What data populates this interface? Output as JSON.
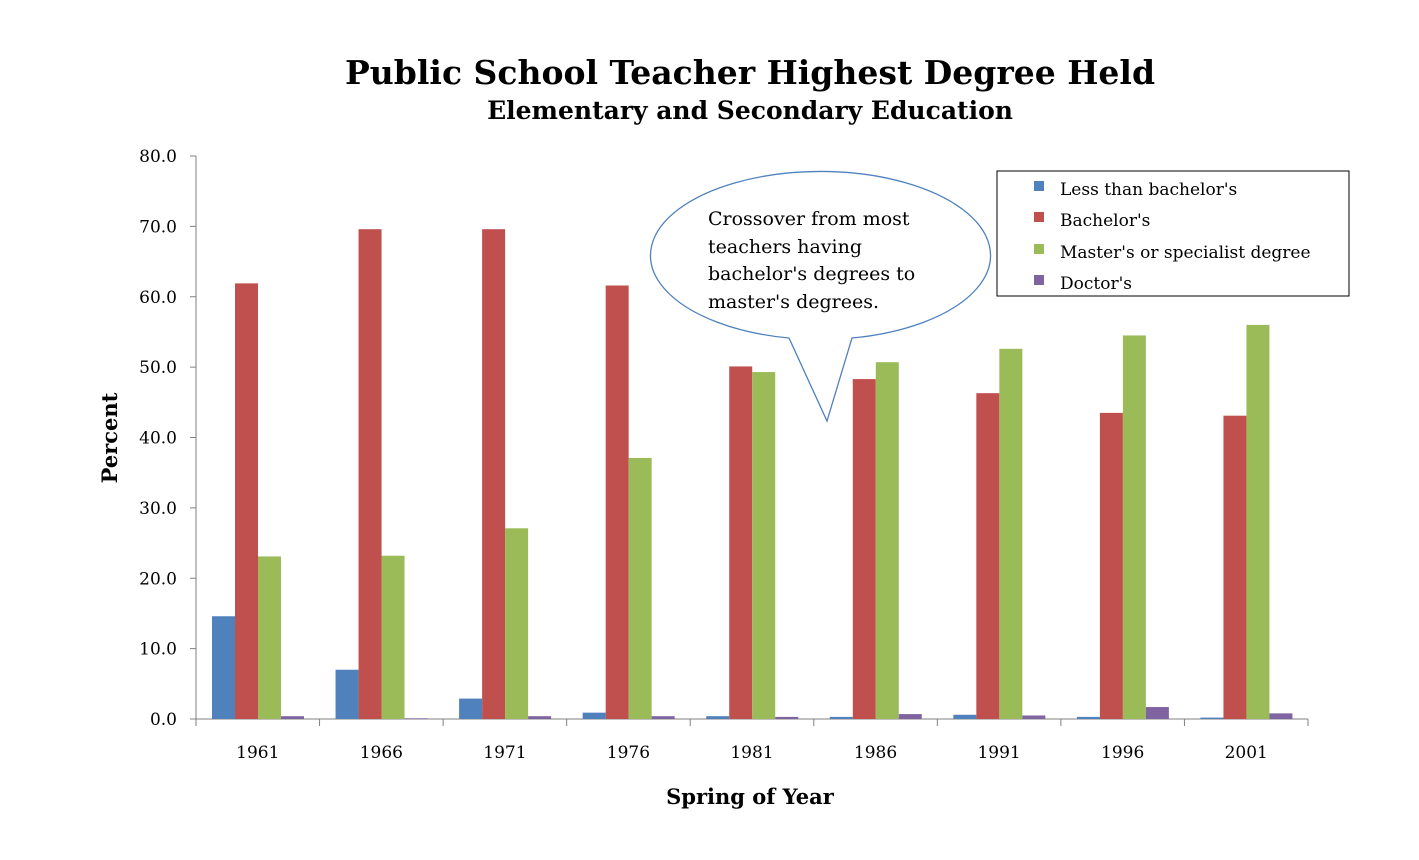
{
  "chart_data": {
    "type": "bar",
    "title": "Public School Teacher Highest Degree Held",
    "subtitle": "Elementary and Secondary Education",
    "xlabel": "Spring of Year",
    "ylabel": "Percent",
    "categories": [
      "1961",
      "1966",
      "1971",
      "1976",
      "1981",
      "1986",
      "1991",
      "1996",
      "2001"
    ],
    "ylim": [
      0,
      80
    ],
    "yticks": [
      "0.0",
      "10.0",
      "20.0",
      "30.0",
      "40.0",
      "50.0",
      "60.0",
      "70.0",
      "80.0"
    ],
    "grid": false,
    "legend_position": "top-right",
    "series": [
      {
        "name": "Less than bachelor's",
        "color": "#4F81BD",
        "values": [
          14.6,
          7.0,
          2.9,
          0.9,
          0.4,
          0.3,
          0.6,
          0.3,
          0.2
        ]
      },
      {
        "name": "Bachelor's",
        "color": "#C0504D",
        "values": [
          61.9,
          69.6,
          69.6,
          61.6,
          50.1,
          48.3,
          46.3,
          43.5,
          43.1
        ]
      },
      {
        "name": "Master's or specialist degree",
        "color": "#9BBB59",
        "values": [
          23.1,
          23.2,
          27.1,
          37.1,
          49.3,
          50.7,
          52.6,
          54.5,
          56.0
        ]
      },
      {
        "name": "Doctor's",
        "color": "#8064A2",
        "values": [
          0.4,
          0.1,
          0.4,
          0.4,
          0.3,
          0.7,
          0.5,
          1.7,
          0.8
        ]
      }
    ],
    "annotation": {
      "lines": [
        "Crossover from most",
        "teachers having",
        "bachelor's degrees to",
        "master's degrees."
      ]
    }
  }
}
